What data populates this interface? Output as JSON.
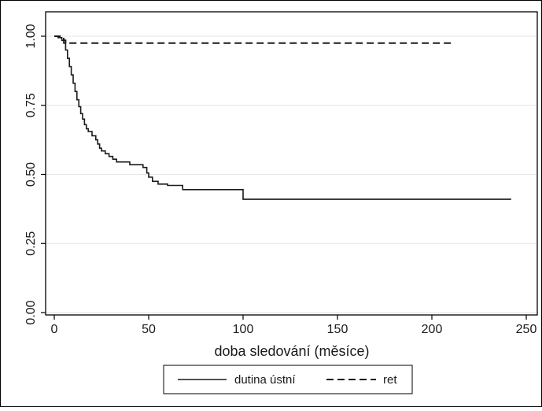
{
  "chart_data": {
    "type": "line",
    "title": "",
    "xlabel": "doba sledování (měsíce)",
    "ylabel": "",
    "xlim": [
      0,
      250
    ],
    "ylim": [
      0,
      1
    ],
    "xticks": [
      {
        "value": 0,
        "label": "0"
      },
      {
        "value": 50,
        "label": "50"
      },
      {
        "value": 100,
        "label": "100"
      },
      {
        "value": 150,
        "label": "150"
      },
      {
        "value": 200,
        "label": "200"
      },
      {
        "value": 250,
        "label": "250"
      }
    ],
    "yticks": [
      {
        "value": 0,
        "label": "0.00"
      },
      {
        "value": 0.25,
        "label": "0.25"
      },
      {
        "value": 0.5,
        "label": "0.50"
      },
      {
        "value": 0.75,
        "label": "0.75"
      },
      {
        "value": 1,
        "label": "1.00"
      }
    ],
    "grid": "horizontal",
    "legend_position": "bottom",
    "series": [
      {
        "name": "dutina ústní",
        "style": "solid",
        "step": true,
        "points": [
          [
            0,
            1.0
          ],
          [
            2,
            0.995
          ],
          [
            4,
            0.985
          ],
          [
            5,
            0.975
          ],
          [
            6,
            0.95
          ],
          [
            7,
            0.92
          ],
          [
            8,
            0.89
          ],
          [
            9,
            0.86
          ],
          [
            10,
            0.83
          ],
          [
            11,
            0.8
          ],
          [
            12,
            0.77
          ],
          [
            13,
            0.745
          ],
          [
            14,
            0.72
          ],
          [
            15,
            0.7
          ],
          [
            16,
            0.68
          ],
          [
            17,
            0.665
          ],
          [
            18,
            0.655
          ],
          [
            20,
            0.64
          ],
          [
            22,
            0.625
          ],
          [
            23,
            0.61
          ],
          [
            24,
            0.595
          ],
          [
            25,
            0.585
          ],
          [
            27,
            0.575
          ],
          [
            29,
            0.565
          ],
          [
            31,
            0.555
          ],
          [
            33,
            0.545
          ],
          [
            40,
            0.535
          ],
          [
            47,
            0.525
          ],
          [
            49,
            0.505
          ],
          [
            50,
            0.49
          ],
          [
            52,
            0.475
          ],
          [
            55,
            0.465
          ],
          [
            60,
            0.46
          ],
          [
            68,
            0.445
          ],
          [
            75,
            0.445
          ],
          [
            99,
            0.445
          ],
          [
            100,
            0.41
          ],
          [
            242,
            0.41
          ]
        ]
      },
      {
        "name": "ret",
        "style": "dashed",
        "step": true,
        "points": [
          [
            0,
            1.0
          ],
          [
            3,
            0.995
          ],
          [
            5,
            0.985
          ],
          [
            6,
            0.975
          ],
          [
            212,
            0.975
          ]
        ]
      }
    ]
  }
}
